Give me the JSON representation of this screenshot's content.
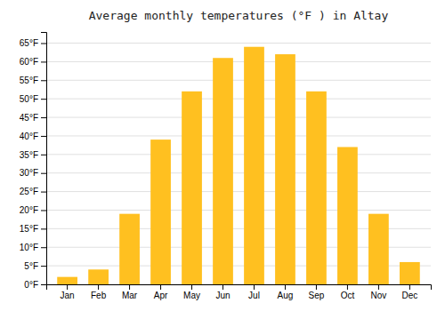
{
  "chart_data": {
    "type": "bar",
    "title": "Average monthly temperatures (°F ) in Altay",
    "categories": [
      "Jan",
      "Feb",
      "Mar",
      "Apr",
      "May",
      "Jun",
      "Jul",
      "Aug",
      "Sep",
      "Oct",
      "Nov",
      "Dec"
    ],
    "values": [
      2,
      4,
      19,
      39,
      52,
      61,
      64,
      62,
      52,
      37,
      19,
      6
    ],
    "color": "#FFC020",
    "ylim": [
      0,
      68
    ],
    "yticks": [
      {
        "value": 0,
        "label": "0°F"
      },
      {
        "value": 5,
        "label": "5°F"
      },
      {
        "value": 10,
        "label": "10°F"
      },
      {
        "value": 15,
        "label": "15°F"
      },
      {
        "value": 20,
        "label": "20°F"
      },
      {
        "value": 25,
        "label": "25°F"
      },
      {
        "value": 30,
        "label": "30°F"
      },
      {
        "value": 35,
        "label": "35°F"
      },
      {
        "value": 40,
        "label": "40°F"
      },
      {
        "value": 45,
        "label": "45°F"
      },
      {
        "value": 50,
        "label": "50°F"
      },
      {
        "value": 55,
        "label": "55°F"
      },
      {
        "value": 60,
        "label": "60°F"
      },
      {
        "value": 65,
        "label": "65°F"
      }
    ],
    "grid": true
  }
}
